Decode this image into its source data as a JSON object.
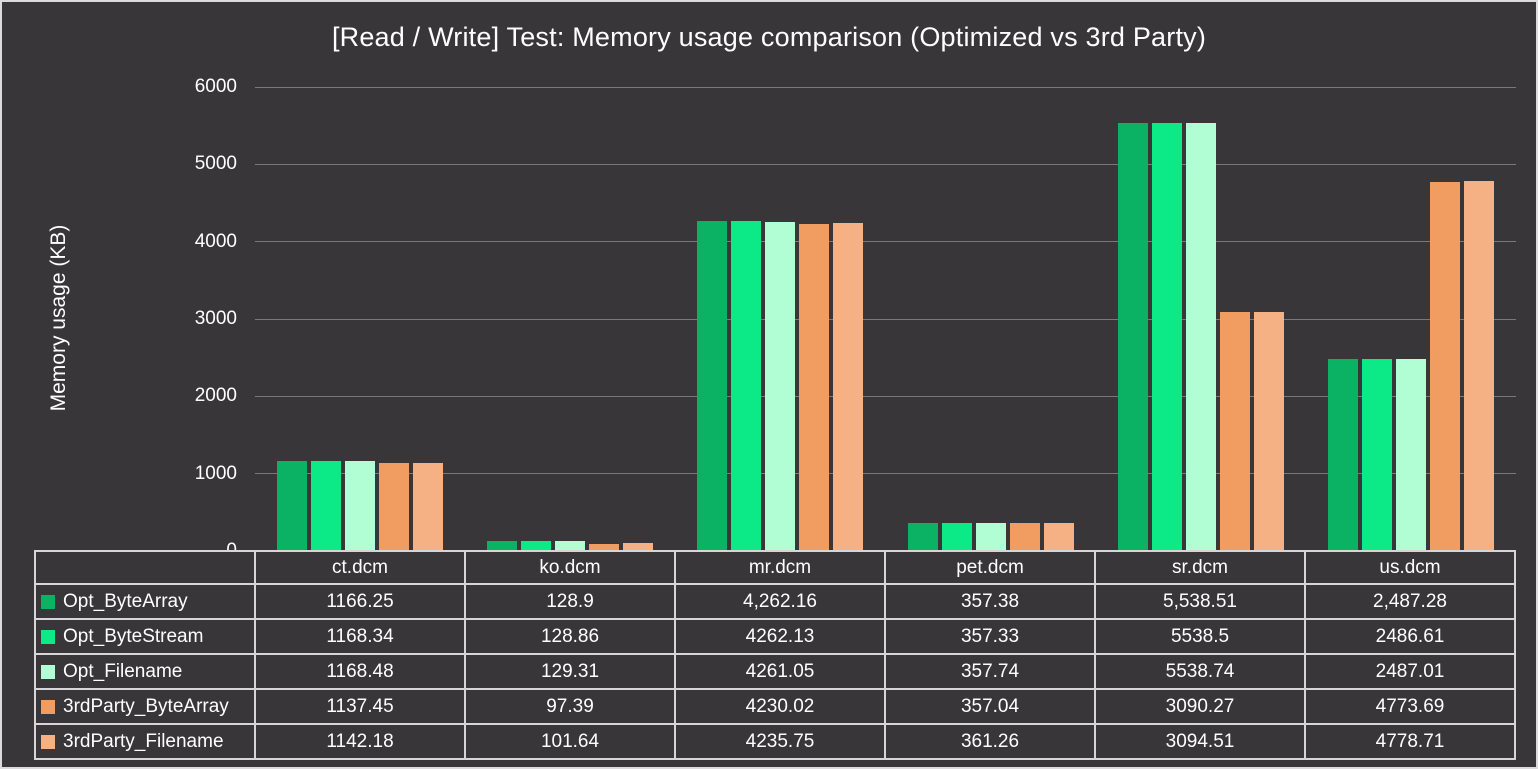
{
  "title": "[Read / Write] Test: Memory usage comparison (Optimized vs 3rd Party)",
  "y_axis": {
    "label": "Memory usage (KB)",
    "ticks": [
      0,
      1000,
      2000,
      3000,
      4000,
      5000,
      6000
    ]
  },
  "chart_data": {
    "type": "bar",
    "title": "[Read / Write] Test: Memory usage comparison (Optimized vs 3rd Party)",
    "xlabel": "",
    "ylabel": "Memory usage (KB)",
    "ylim": [
      0,
      6000
    ],
    "grid": true,
    "legend_position": "data-table-left",
    "categories": [
      "ct.dcm",
      "ko.dcm",
      "mr.dcm",
      "pet.dcm",
      "sr.dcm",
      "us.dcm"
    ],
    "series": [
      {
        "name": "Opt_ByteArray",
        "color": "#0cb263",
        "values": [
          1166.25,
          128.9,
          4262.16,
          357.38,
          5538.51,
          2487.28
        ],
        "display": [
          "1166.25",
          "128.9",
          "4,262.16",
          "357.38",
          "5,538.51",
          "2,487.28"
        ]
      },
      {
        "name": "Opt_ByteStream",
        "color": "#0bea87",
        "values": [
          1168.34,
          128.86,
          4262.13,
          357.33,
          5538.5,
          2486.61
        ],
        "display": [
          "1168.34",
          "128.86",
          "4262.13",
          "357.33",
          "5538.5",
          "2486.61"
        ]
      },
      {
        "name": "Opt_Filename",
        "color": "#b2fed4",
        "values": [
          1168.48,
          129.31,
          4261.05,
          357.74,
          5538.74,
          2487.01
        ],
        "display": [
          "1168.48",
          "129.31",
          "4261.05",
          "357.74",
          "5538.74",
          "2487.01"
        ]
      },
      {
        "name": "3rdParty_ByteArray",
        "color": "#f19d62",
        "values": [
          1137.45,
          97.39,
          4230.02,
          357.04,
          3090.27,
          4773.69
        ],
        "display": [
          "1137.45",
          "97.39",
          "4230.02",
          "357.04",
          "3090.27",
          "4773.69"
        ]
      },
      {
        "name": "3rdParty_Filename",
        "color": "#f5b084",
        "values": [
          1142.18,
          101.64,
          4235.75,
          361.26,
          3094.51,
          4778.71
        ],
        "display": [
          "1142.18",
          "101.64",
          "4235.75",
          "361.26",
          "3094.51",
          "4778.71"
        ]
      }
    ]
  },
  "colors": {
    "background": "#393639",
    "text": "#ffffff",
    "gridline": "#7b787b",
    "table_border": "#d8d5d8",
    "frame_border": "#dcdadc"
  }
}
